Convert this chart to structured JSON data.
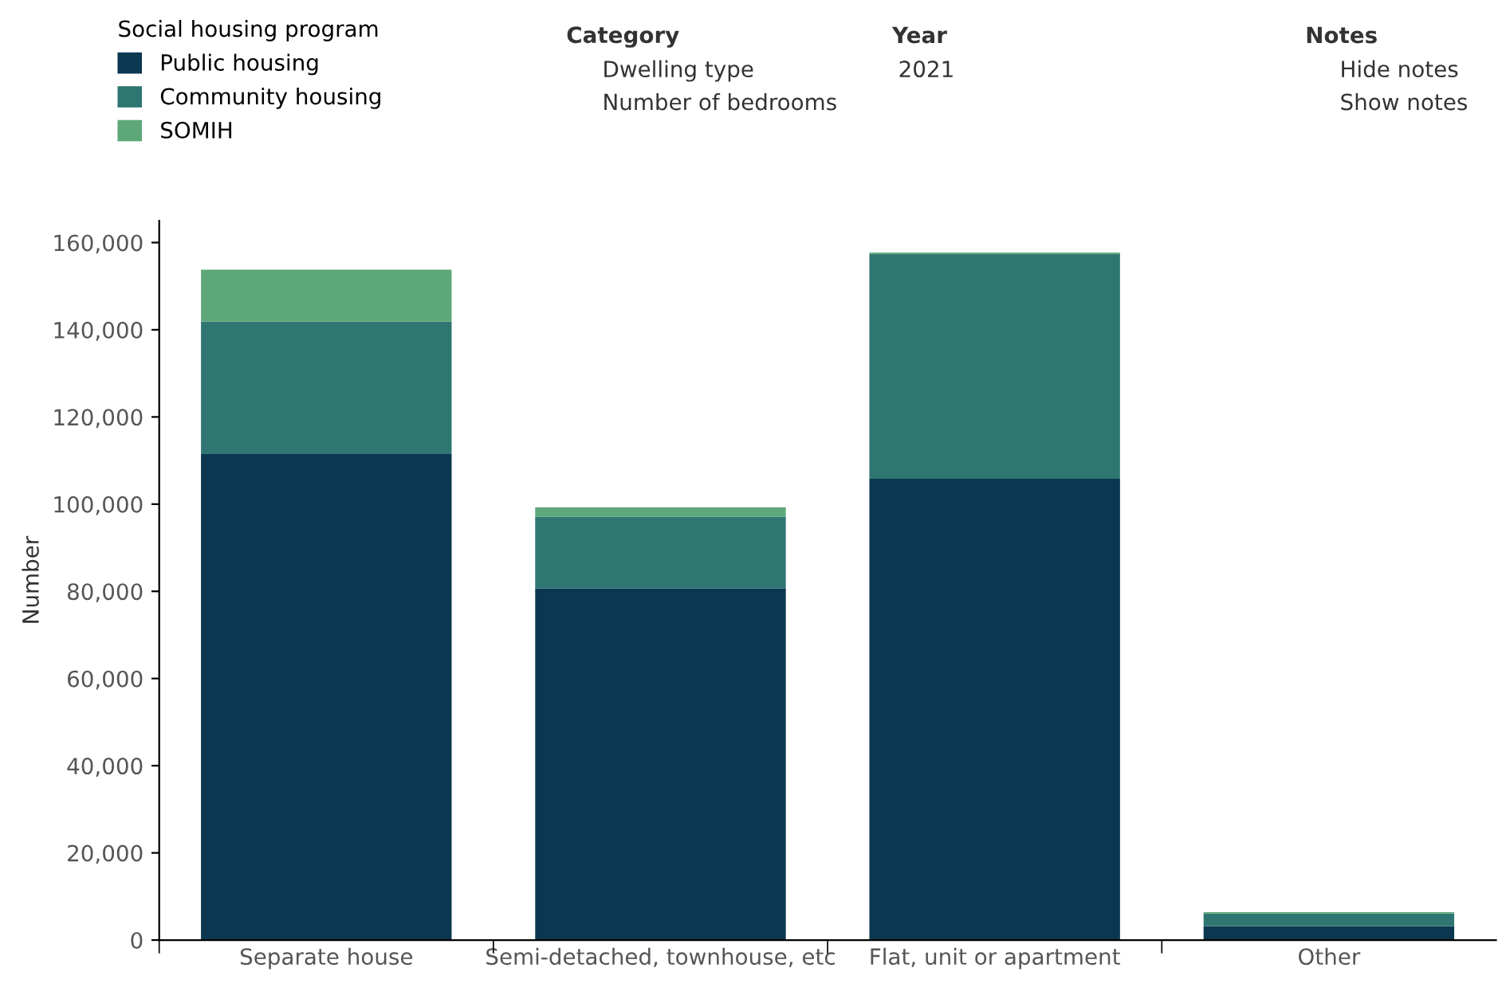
{
  "chart_data": {
    "type": "bar",
    "stacked": true,
    "legend": "top left",
    "legend_title": "Social housing program",
    "ylabel": "Number",
    "grid": false,
    "categories": [
      "Separate house",
      "Semi-detached, townhouse, etc",
      "Flat, unit or apartment",
      "Other"
    ],
    "series": [
      {
        "name": "Public housing",
        "color": "#0b3750",
        "values": [
          111500,
          80700,
          105800,
          3200
        ]
      },
      {
        "name": "Community housing",
        "color": "#2f7673",
        "values": [
          30400,
          16400,
          51600,
          2900
        ]
      },
      {
        "name": "SOMIH",
        "color": "#5ea779",
        "values": [
          11900,
          2200,
          300,
          300
        ]
      }
    ],
    "ylim": [
      0,
      165000
    ],
    "yticks": [
      {
        "value": 0,
        "label": "0"
      },
      {
        "value": 20000,
        "label": "20,000"
      },
      {
        "value": 40000,
        "label": "40,000"
      },
      {
        "value": 60000,
        "label": "60,000"
      },
      {
        "value": 80000,
        "label": "80,000"
      },
      {
        "value": 100000,
        "label": "100,000"
      },
      {
        "value": 120000,
        "label": "120,000"
      },
      {
        "value": 140000,
        "label": "140,000"
      },
      {
        "value": 160000,
        "label": "160,000"
      }
    ],
    "annotations": [
      "Category",
      "Dwelling type",
      "Number of bedrooms",
      "Year",
      "2021",
      "Notes",
      "Hide notes",
      "Show notes"
    ]
  }
}
